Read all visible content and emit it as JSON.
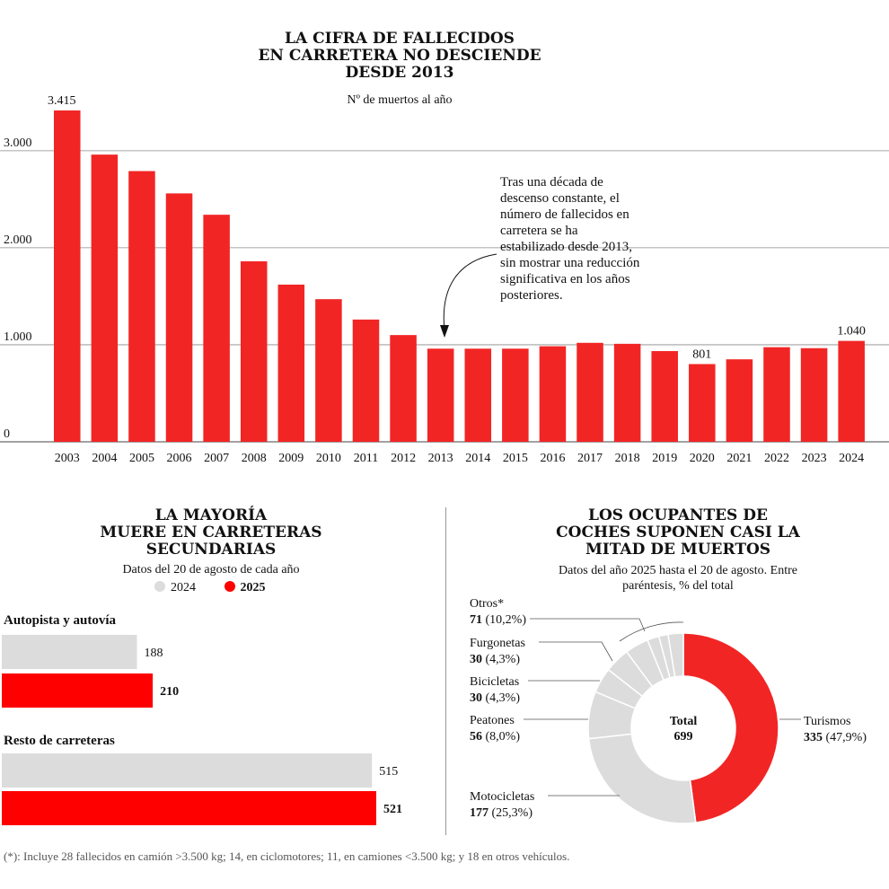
{
  "chart_data": [
    {
      "type": "bar",
      "title": "LA CIFRA DE FALLECIDOS EN CARRETERA NO DESCIENDE DESDE 2013",
      "title_lines": [
        "LA CIFRA DE FALLECIDOS",
        "EN CARRETERA NO DESCIENDE",
        "DESDE 2013"
      ],
      "subtitle": "Nº de muertos al año",
      "categories": [
        "2003",
        "2004",
        "2005",
        "2006",
        "2007",
        "2008",
        "2009",
        "2010",
        "2011",
        "2012",
        "2013",
        "2014",
        "2015",
        "2016",
        "2017",
        "2018",
        "2019",
        "2020",
        "2021",
        "2022",
        "2023",
        "2024"
      ],
      "values": [
        3415,
        2960,
        2790,
        2560,
        2340,
        1860,
        1620,
        1470,
        1260,
        1100,
        960,
        960,
        960,
        985,
        1020,
        1010,
        935,
        801,
        850,
        975,
        965,
        1040
      ],
      "data_labels": {
        "2003": "3.415",
        "2020": "801",
        "2024": "1.040"
      },
      "y_ticks": [
        0,
        1000,
        2000,
        3000
      ],
      "y_tick_labels": [
        "0",
        "1.000",
        "2.000",
        "3.000"
      ],
      "ylim": [
        0,
        3415
      ],
      "grid": true,
      "bar_color": "#f22525",
      "annotation": [
        "Tras una década de",
        "descenso constante, el",
        "número de  fallecidos en",
        "carretera se ha",
        "estabilizado desde 2013,",
        "sin mostrar una reducción",
        "significativa en los años",
        "posteriores."
      ]
    },
    {
      "type": "bar",
      "orientation": "horizontal",
      "title_lines": [
        "LA MAYORÍA",
        "MUERE EN CARRETERAS",
        "SECUNDARIAS"
      ],
      "subtitle": "Datos del 20 de agosto de cada año",
      "legend": [
        {
          "name": "2024",
          "color": "#dcdcdc"
        },
        {
          "name": "2025",
          "color": "#ff0000"
        }
      ],
      "groups": [
        {
          "name": "Autopista y autovía",
          "values": [
            188,
            210
          ],
          "labels": [
            "188",
            "210"
          ]
        },
        {
          "name": "Resto de carreteras",
          "values": [
            515,
            521
          ],
          "labels": [
            "515",
            "521"
          ]
        }
      ],
      "xlim": [
        0,
        521
      ]
    },
    {
      "type": "pie",
      "title_lines": [
        "LOS OCUPANTES DE",
        "COCHES SUPONEN CASI LA",
        "MITAD DE MUERTOS"
      ],
      "subtitle_lines": [
        "Datos del año 2025 hasta el 20 de agosto. Entre",
        "paréntesis, % del total"
      ],
      "center_label": [
        "Total",
        "699"
      ],
      "slices": [
        {
          "name": "Turismos",
          "value": 335,
          "pct": "(47,9%)",
          "display": "335",
          "color": "#f22525"
        },
        {
          "name": "Motocicletas",
          "value": 177,
          "pct": "(25,3%)",
          "display": "177",
          "color": "#dcdcdc"
        },
        {
          "name": "Peatones",
          "value": 56,
          "pct": "(8,0%)",
          "display": "56",
          "color": "#dcdcdc"
        },
        {
          "name": "Bicicletas",
          "value": 30,
          "pct": "(4,3%)",
          "display": "30",
          "color": "#dcdcdc"
        },
        {
          "name": "Furgonetas",
          "value": 30,
          "pct": "(4,3%)",
          "display": "30",
          "color": "#dcdcdc"
        },
        {
          "name": "Otros*",
          "value": 71,
          "pct": "(10,2%)",
          "display": "71",
          "color": "#dcdcdc"
        }
      ],
      "others_subslices": [
        28,
        14,
        11,
        18
      ]
    }
  ],
  "footnote": "(*): Incluye 28 fallecidos en camión >3.500 kg; 14, en ciclomotores; 11, en camiones <3.500 kg; y 18 en otros vehículos."
}
